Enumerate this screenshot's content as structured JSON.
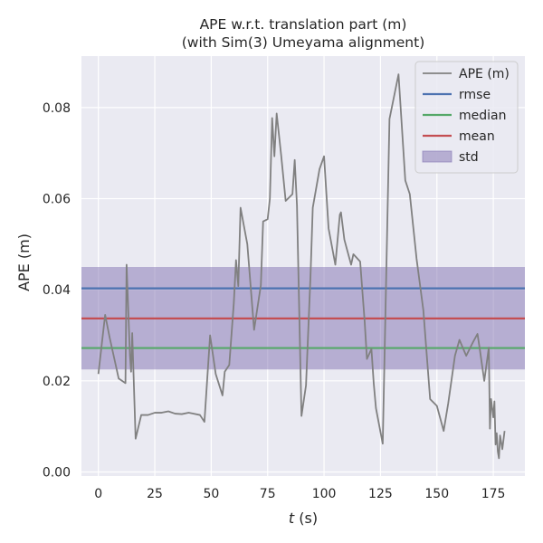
{
  "chart_data": {
    "type": "line",
    "title": "APE w.r.t. translation part (m)",
    "subtitle": "(with Sim(3) Umeyama alignment)",
    "xlabel_italic": "t",
    "xlabel_unit": " (s)",
    "ylabel": "APE (m)",
    "xlim": [
      -7.5,
      189
    ],
    "ylim": [
      -0.0009,
      0.0913
    ],
    "xticks": [
      0,
      25,
      50,
      75,
      100,
      125,
      150,
      175
    ],
    "yticks": [
      0.0,
      0.02,
      0.04,
      0.06,
      0.08
    ],
    "ytick_labels": [
      "0.00",
      "0.02",
      "0.04",
      "0.06",
      "0.08"
    ],
    "grid": true,
    "legend_position": "top-right",
    "legend": [
      {
        "label": "APE (m)",
        "kind": "line",
        "color": "#808080"
      },
      {
        "label": "rmse",
        "kind": "line",
        "color": "#4c72b0"
      },
      {
        "label": "median",
        "kind": "line",
        "color": "#55a868"
      },
      {
        "label": "mean",
        "kind": "line",
        "color": "#c44e52"
      },
      {
        "label": "std",
        "kind": "patch",
        "color": "#8172b2"
      }
    ],
    "stats": {
      "rmse": 0.0403,
      "median": 0.0272,
      "mean": 0.0337,
      "std_low": 0.0225,
      "std_high": 0.045
    },
    "series": [
      {
        "name": "APE (m)",
        "color": "#808080",
        "x": [
          0,
          3,
          5,
          9,
          12,
          12.5,
          14,
          14.5,
          15,
          16.5,
          19,
          22,
          25,
          28,
          31,
          34,
          37,
          40,
          42,
          45,
          47,
          49.5,
          52,
          55,
          56,
          58,
          60,
          61,
          62,
          63,
          66,
          69,
          72,
          73,
          75,
          76,
          77,
          78,
          79,
          81,
          82,
          83,
          86,
          87,
          88,
          90,
          92,
          94,
          95,
          98,
          100,
          102,
          105,
          107,
          107.5,
          109,
          112,
          113,
          116,
          118,
          119,
          121,
          122,
          123,
          126,
          129,
          133,
          136,
          138,
          141,
          144,
          147,
          150,
          153,
          155,
          158,
          160,
          163,
          166,
          168,
          169,
          171,
          173,
          173.5,
          174,
          175,
          175.5,
          176,
          176.5,
          177,
          177.5,
          178,
          179,
          180
        ],
        "y": [
          0.0215,
          0.0345,
          0.0295,
          0.0205,
          0.0195,
          0.0455,
          0.0255,
          0.022,
          0.0305,
          0.0073,
          0.0125,
          0.0125,
          0.013,
          0.013,
          0.0133,
          0.0128,
          0.0127,
          0.013,
          0.0128,
          0.0125,
          0.011,
          0.03,
          0.0215,
          0.0168,
          0.022,
          0.0235,
          0.037,
          0.0465,
          0.0408,
          0.058,
          0.05,
          0.0312,
          0.041,
          0.055,
          0.0555,
          0.06,
          0.0777,
          0.0693,
          0.0787,
          0.0695,
          0.0645,
          0.0595,
          0.061,
          0.0685,
          0.0585,
          0.0123,
          0.019,
          0.043,
          0.058,
          0.0665,
          0.0693,
          0.0535,
          0.0455,
          0.0565,
          0.057,
          0.051,
          0.0455,
          0.0478,
          0.0462,
          0.033,
          0.0248,
          0.027,
          0.0195,
          0.014,
          0.0062,
          0.0775,
          0.0873,
          0.064,
          0.061,
          0.0468,
          0.0355,
          0.016,
          0.0145,
          0.009,
          0.015,
          0.0255,
          0.029,
          0.0255,
          0.0285,
          0.0303,
          0.027,
          0.02,
          0.0273,
          0.0095,
          0.016,
          0.012,
          0.0155,
          0.006,
          0.0085,
          0.0045,
          0.003,
          0.008,
          0.005,
          0.009
        ]
      }
    ]
  }
}
